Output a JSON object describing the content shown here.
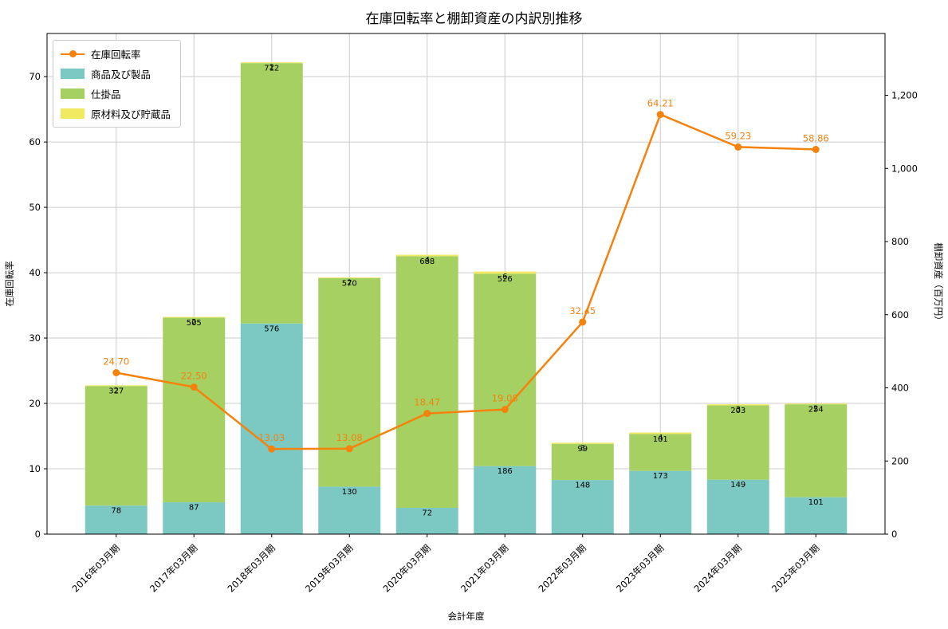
{
  "title": "在庫回転率と棚卸資産の内訳別推移",
  "chart_data": {
    "type": "bar+line",
    "categories": [
      "2016年03月期",
      "2017年03月期",
      "2018年03月期",
      "2019年03月期",
      "2020年03月期",
      "2021年03月期",
      "2022年03月期",
      "2023年03月期",
      "2024年03月期",
      "2025年03月期"
    ],
    "series": [
      {
        "name": "在庫回転率",
        "type": "line",
        "axis": "left",
        "color": "#f5820d",
        "values": [
          24.7,
          22.5,
          13.03,
          13.08,
          18.47,
          19.08,
          32.45,
          64.21,
          59.23,
          58.86
        ],
        "labels": [
          "24.70",
          "22.50",
          "13.03",
          "13.08",
          "18.47",
          "19.08",
          "32.45",
          "64.21",
          "59.23",
          "58.86"
        ]
      },
      {
        "name": "商品及び製品",
        "type": "bar",
        "axis": "right",
        "color": "#7cc8c2",
        "values": [
          78,
          87,
          576,
          130,
          72,
          186,
          148,
          173,
          149,
          101
        ]
      },
      {
        "name": "仕掛品",
        "type": "bar",
        "axis": "right",
        "color": "#a6d162",
        "values": [
          327,
          505,
          712,
          570,
          688,
          526,
          99,
          101,
          203,
          254
        ]
      },
      {
        "name": "原材料及び貯蔵品",
        "type": "bar",
        "axis": "right",
        "color": "#f2e962",
        "values": [
          2,
          2,
          2,
          2,
          4,
          6,
          3,
          4,
          3,
          2
        ]
      }
    ],
    "title": "在庫回転率と棚卸資産の内訳別推移",
    "xlabel": "会計年度",
    "ylabel_left": "在庫回転率",
    "ylabel_right": "棚卸資産（百万円）",
    "yticks_left": [
      0,
      10,
      20,
      30,
      40,
      50,
      60,
      70
    ],
    "yticks_right": [
      0,
      200,
      400,
      600,
      800,
      1000,
      1200
    ],
    "yticks_right_labels": [
      "0",
      "200",
      "400",
      "600",
      "800",
      "1,000",
      "1,200"
    ],
    "ylim_left": [
      0,
      76.6
    ],
    "ylim_right": [
      0,
      1369
    ],
    "grid": true,
    "legend_position": "upper-left",
    "colors": {
      "grid": "#cccccc",
      "axis": "#000000",
      "bar_label": "#000000",
      "background": "#ffffff"
    }
  }
}
